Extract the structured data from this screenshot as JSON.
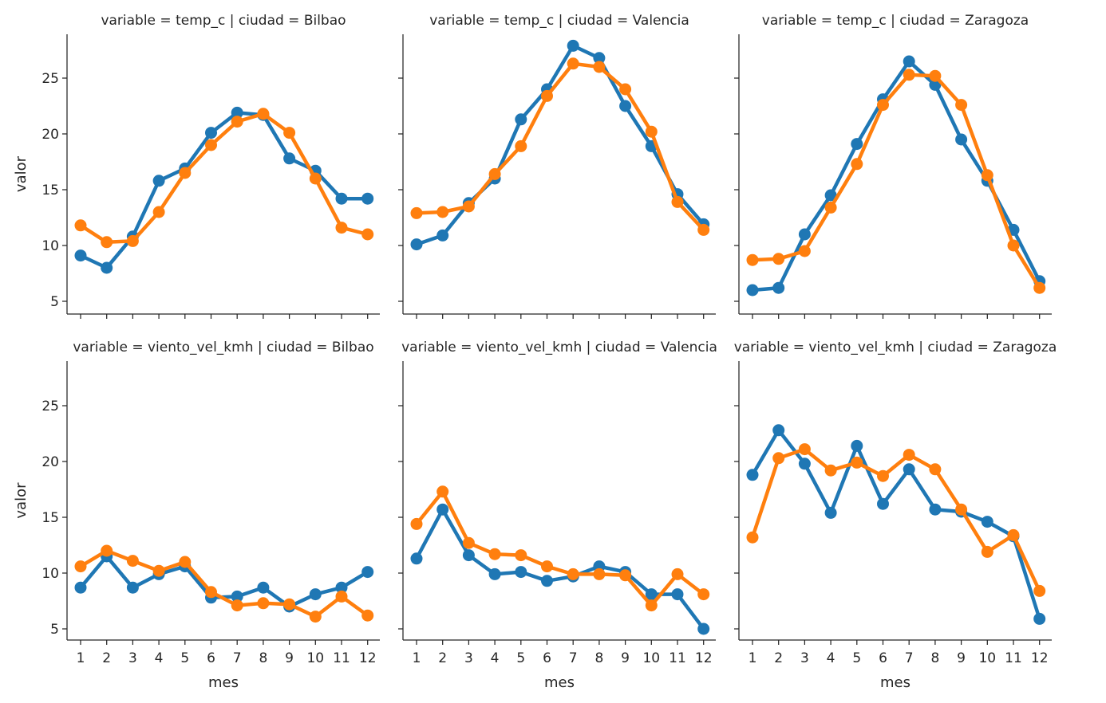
{
  "chart_data": {
    "type": "line",
    "shared": {
      "x": [
        1,
        2,
        3,
        4,
        5,
        6,
        7,
        8,
        9,
        10,
        11,
        12
      ],
      "x_tick_labels": [
        "1",
        "2",
        "3",
        "4",
        "5",
        "6",
        "7",
        "8",
        "9",
        "10",
        "11",
        "12"
      ],
      "xlabel": "mes",
      "ylabel": "valor",
      "ylim": [
        4,
        29
      ],
      "y_ticks": [
        5,
        10,
        15,
        20,
        25
      ],
      "colors": [
        "#1f77b4",
        "#ff7f0e"
      ],
      "grid": false,
      "markers": "circle"
    },
    "panels": [
      {
        "title": "variable = temp_c | ciudad = Bilbao",
        "series": [
          {
            "values": [
              9.1,
              8.0,
              10.8,
              15.8,
              16.9,
              20.1,
              21.9,
              21.7,
              17.8,
              16.7,
              14.2,
              14.2
            ]
          },
          {
            "values": [
              11.8,
              10.3,
              10.4,
              13.0,
              16.5,
              19.0,
              21.1,
              21.8,
              20.1,
              16.0,
              11.6,
              11.0
            ]
          }
        ]
      },
      {
        "title": "variable = temp_c | ciudad = Valencia",
        "series": [
          {
            "values": [
              10.1,
              10.9,
              13.8,
              16.0,
              21.3,
              24.0,
              27.9,
              26.8,
              22.5,
              18.9,
              14.6,
              11.9
            ]
          },
          {
            "values": [
              12.9,
              13.0,
              13.5,
              16.4,
              18.9,
              23.4,
              26.3,
              26.0,
              24.0,
              20.2,
              13.9,
              11.4
            ]
          }
        ]
      },
      {
        "title": "variable = temp_c | ciudad = Zaragoza",
        "series": [
          {
            "values": [
              6.0,
              6.2,
              11.0,
              14.5,
              19.1,
              23.1,
              26.5,
              24.4,
              19.5,
              15.8,
              11.4,
              6.8
            ]
          },
          {
            "values": [
              8.7,
              8.8,
              9.5,
              13.4,
              17.3,
              22.6,
              25.3,
              25.2,
              22.6,
              16.3,
              10.0,
              6.2
            ]
          }
        ]
      },
      {
        "title": "variable = viento_vel_kmh | ciudad = Bilbao",
        "series": [
          {
            "values": [
              8.7,
              11.5,
              8.7,
              9.9,
              10.6,
              7.8,
              7.9,
              8.7,
              7.0,
              8.1,
              8.7,
              10.1
            ]
          },
          {
            "values": [
              10.6,
              12.0,
              11.1,
              10.2,
              11.0,
              8.3,
              7.1,
              7.3,
              7.2,
              6.1,
              7.9,
              6.2
            ]
          }
        ]
      },
      {
        "title": "variable = viento_vel_kmh | ciudad = Valencia",
        "series": [
          {
            "values": [
              11.3,
              15.7,
              11.6,
              9.9,
              10.1,
              9.3,
              9.7,
              10.6,
              10.1,
              8.1,
              8.1,
              5.0
            ]
          },
          {
            "values": [
              14.4,
              17.3,
              12.7,
              11.7,
              11.6,
              10.6,
              9.9,
              9.9,
              9.8,
              7.1,
              9.9,
              8.1
            ]
          }
        ]
      },
      {
        "title": "variable = viento_vel_kmh | ciudad = Zaragoza",
        "series": [
          {
            "values": [
              18.8,
              22.8,
              19.8,
              15.4,
              21.4,
              16.2,
              19.3,
              15.7,
              15.5,
              14.6,
              13.3,
              5.9
            ]
          },
          {
            "values": [
              13.2,
              20.3,
              21.1,
              19.2,
              19.9,
              18.7,
              20.6,
              19.3,
              15.7,
              11.9,
              13.4,
              8.4
            ]
          }
        ]
      }
    ]
  }
}
